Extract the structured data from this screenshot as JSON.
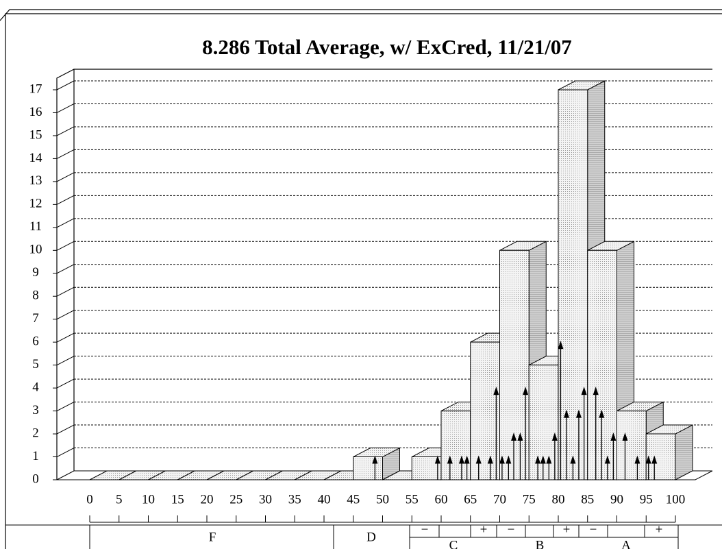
{
  "chart_data": {
    "type": "histogram",
    "title": "8.286 Total Average, w/ ExCred, 11/21/07",
    "bins": [
      0,
      5,
      10,
      15,
      20,
      25,
      30,
      35,
      40,
      45,
      50,
      55,
      60,
      65,
      70,
      75,
      80,
      85,
      90,
      95,
      100
    ],
    "values": [
      0,
      0,
      0,
      0,
      0,
      0,
      0,
      0,
      0,
      1,
      0,
      1,
      3,
      6,
      10,
      5,
      17,
      10,
      3,
      2
    ],
    "color": "#eeeeee",
    "markers": {
      "x": [
        48.7,
        59.4,
        61.5,
        63.5,
        64.4,
        66.4,
        68.4,
        69.4,
        70.4,
        71.5,
        72.4,
        73.5,
        74.4,
        76.5,
        77.4,
        78.4,
        79.4,
        80.4,
        81.4,
        82.5,
        83.5,
        84.4,
        86.4,
        87.4,
        88.4,
        89.4,
        91.4,
        93.5,
        95.4,
        96.4
      ],
      "values": [
        1,
        1,
        1,
        1,
        1,
        1,
        1,
        4,
        1,
        1,
        2,
        2,
        4,
        1,
        1,
        1,
        2,
        6,
        3,
        1,
        3,
        4,
        4,
        3,
        1,
        2,
        2,
        1,
        1,
        1
      ]
    },
    "xlim": [
      0,
      100
    ],
    "xticks": [
      0,
      5,
      10,
      15,
      20,
      25,
      30,
      35,
      40,
      45,
      50,
      55,
      60,
      65,
      70,
      75,
      80,
      85,
      90,
      95,
      100
    ],
    "ylim": [
      0,
      17
    ],
    "yticks": [
      0,
      1,
      2,
      3,
      4,
      5,
      6,
      7,
      8,
      9,
      10,
      11,
      12,
      13,
      14,
      15,
      16,
      17
    ],
    "grid": true
  },
  "grade_table": {
    "letters": [
      "F",
      "D",
      "C",
      "B",
      "A"
    ],
    "signs": [
      "−",
      "+",
      "−",
      "+",
      "−",
      "+"
    ]
  }
}
